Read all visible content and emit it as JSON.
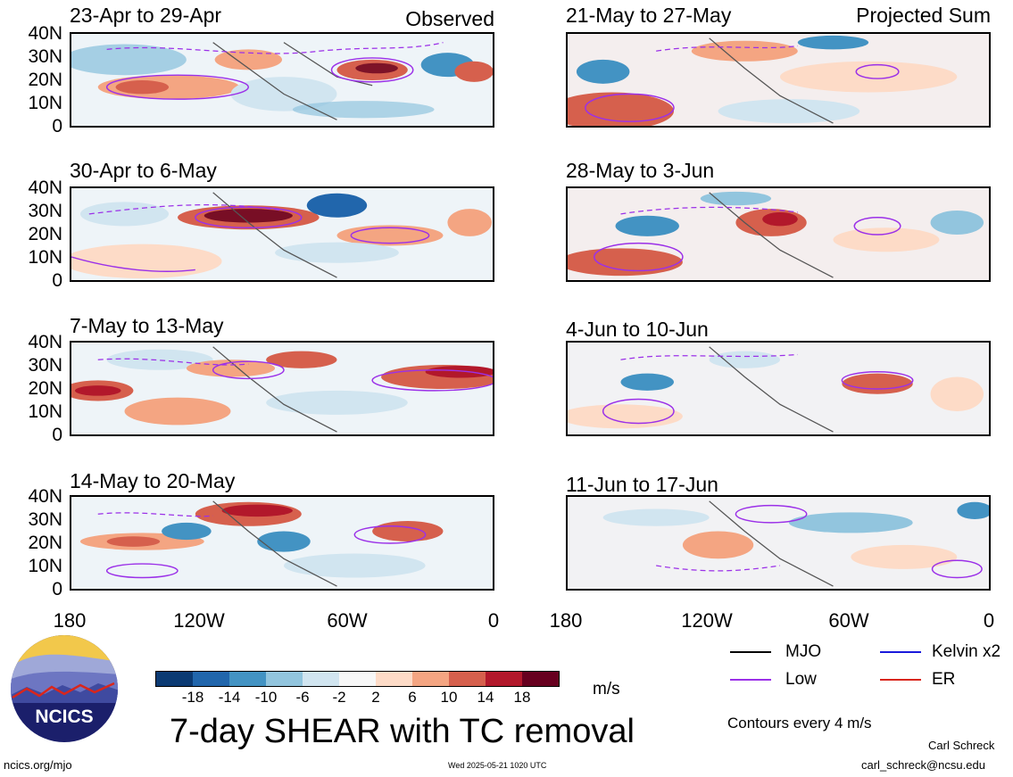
{
  "header": {
    "left_tag": "Observed",
    "right_tag": "Projected Sum"
  },
  "panels": [
    {
      "title": "23-Apr to 29-Apr"
    },
    {
      "title": "30-Apr to 6-May"
    },
    {
      "title": "7-May to 13-May"
    },
    {
      "title": "14-May to 20-May"
    },
    {
      "title": "21-May to 27-May"
    },
    {
      "title": "28-May to 3-Jun"
    },
    {
      "title": "4-Jun to 10-Jun"
    },
    {
      "title": "11-Jun to 17-Jun"
    }
  ],
  "lat_labels": [
    "40N",
    "30N",
    "20N",
    "10N",
    "0"
  ],
  "lon_labels": [
    "180",
    "120W",
    "60W",
    "0"
  ],
  "legend": [
    {
      "label": "MJO",
      "color": "#000000"
    },
    {
      "label": "Kelvin x2",
      "color": "#1a1adb"
    },
    {
      "label": "Low",
      "color": "#9b30e8"
    },
    {
      "label": "ER",
      "color": "#d9261c"
    }
  ],
  "colorbar": {
    "labels": [
      "-18",
      "-14",
      "-10",
      "-6",
      "-2",
      "2",
      "6",
      "10",
      "14",
      "18"
    ],
    "colors": [
      "#0b3a73",
      "#2166ac",
      "#4393c3",
      "#92c5de",
      "#d1e5f0",
      "#f7f7f7",
      "#fddbc7",
      "#f4a582",
      "#d6604d",
      "#b2182b",
      "#67001f"
    ],
    "unit": "m/s"
  },
  "footer": {
    "title": "7-day SHEAR with TC removal",
    "contours_note": "Contours every 4 m/s",
    "logo_text": "NCICS",
    "site": "ncics.org/mjo",
    "timestamp": "Wed 2025-05-21 1020 UTC",
    "author": "Carl Schreck",
    "email": "carl_schreck@ncsu.edu"
  }
}
